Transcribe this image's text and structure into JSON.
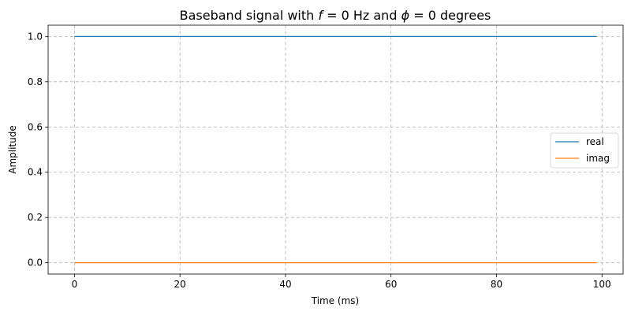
{
  "chart_data": {
    "type": "line",
    "title": "Baseband signal with f = 0 Hz and ϕ = 0 degrees",
    "xlabel": "Time (ms)",
    "ylabel": "Amplitude",
    "xlim": [
      -5,
      104
    ],
    "ylim": [
      -0.05,
      1.05
    ],
    "xticks": [
      0,
      20,
      40,
      60,
      80,
      100
    ],
    "yticks": [
      0.0,
      0.2,
      0.4,
      0.6,
      0.8,
      1.0
    ],
    "xtick_labels": [
      "0",
      "20",
      "40",
      "60",
      "80",
      "100"
    ],
    "ytick_labels": [
      "0.0",
      "0.2",
      "0.4",
      "0.6",
      "0.8",
      "1.0"
    ],
    "grid": true,
    "legend_position": "center-right",
    "x": [
      0,
      99
    ],
    "series": [
      {
        "name": "real",
        "color": "#1f77b4",
        "values": [
          1.0,
          1.0
        ]
      },
      {
        "name": "imag",
        "color": "#ff7f0e",
        "values": [
          0.0,
          0.0
        ]
      }
    ]
  }
}
